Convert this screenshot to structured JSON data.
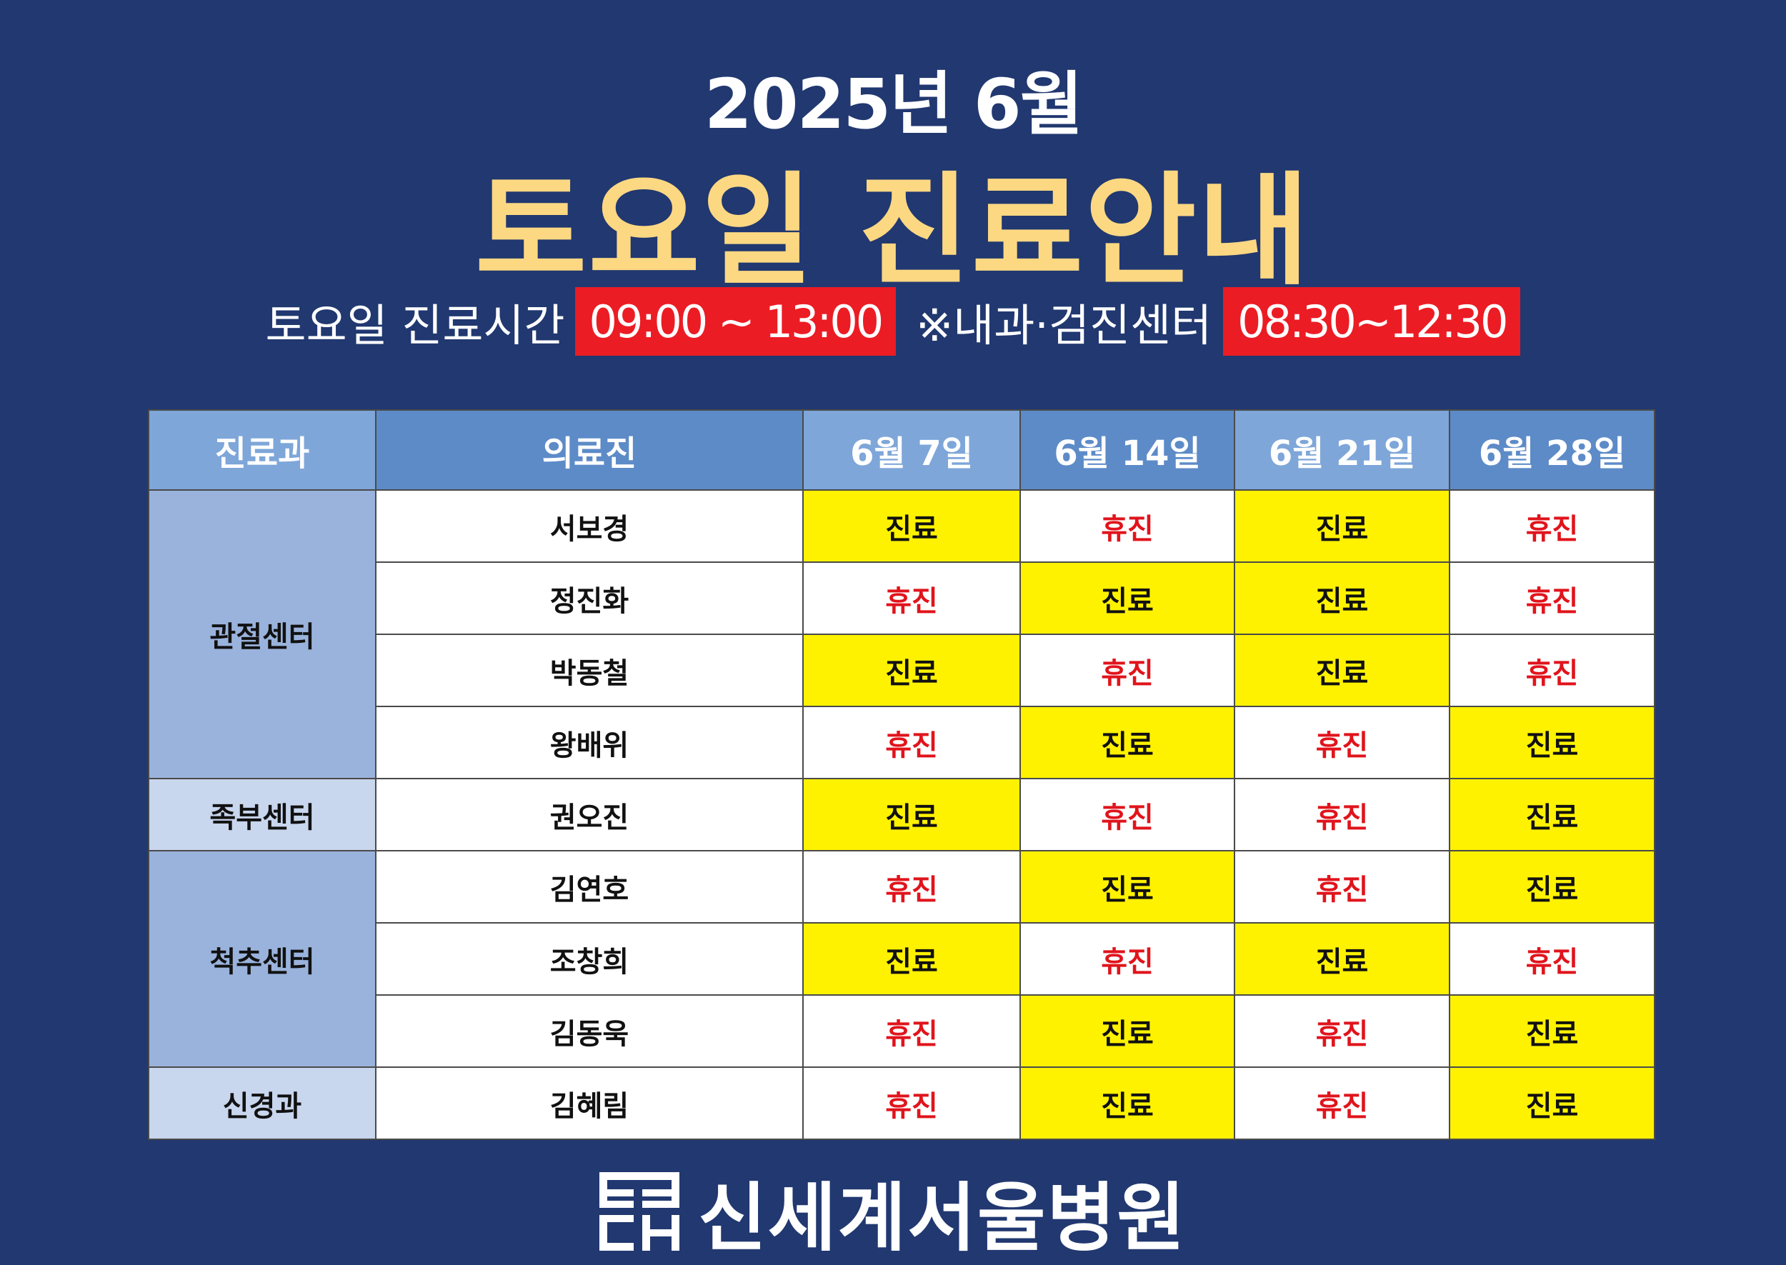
{
  "header": {
    "year_month": "2025년 6월",
    "title": "토요일 진료안내"
  },
  "hours": {
    "label": "토요일 진료시간",
    "time": "09:00 ~ 13:00",
    "note": "※내과·검진센터",
    "note_time": "08:30~12:30"
  },
  "table": {
    "headers": [
      "진료과",
      "의료진",
      "6월 7일",
      "6월 14일",
      "6월 21일",
      "6월 28일"
    ],
    "departments": [
      "관절센터",
      "족부센터",
      "척추센터",
      "신경과"
    ],
    "rows": [
      {
        "doctor": "서보경",
        "days": [
          "진료",
          "휴진",
          "진료",
          "휴진"
        ]
      },
      {
        "doctor": "정진화",
        "days": [
          "휴진",
          "진료",
          "진료",
          "휴진"
        ]
      },
      {
        "doctor": "박동철",
        "days": [
          "진료",
          "휴진",
          "진료",
          "휴진"
        ]
      },
      {
        "doctor": "왕배위",
        "days": [
          "휴진",
          "진료",
          "휴진",
          "진료"
        ]
      },
      {
        "doctor": "권오진",
        "days": [
          "진료",
          "휴진",
          "휴진",
          "진료"
        ]
      },
      {
        "doctor": "김연호",
        "days": [
          "휴진",
          "진료",
          "휴진",
          "진료"
        ]
      },
      {
        "doctor": "조창희",
        "days": [
          "진료",
          "휴진",
          "진료",
          "휴진"
        ]
      },
      {
        "doctor": "김동욱",
        "days": [
          "휴진",
          "진료",
          "휴진",
          "진료"
        ]
      },
      {
        "doctor": "김혜림",
        "days": [
          "휴진",
          "진료",
          "휴진",
          "진료"
        ]
      }
    ]
  },
  "footer": {
    "logo_icon": "hospital-logo-icon",
    "hospital_name": "신세계서울병원"
  },
  "colors": {
    "background": "#213870",
    "title": "#fdd882",
    "time_box": "#ec1c24",
    "open_cell": "#fff200",
    "closed_text": "#e0141c"
  }
}
